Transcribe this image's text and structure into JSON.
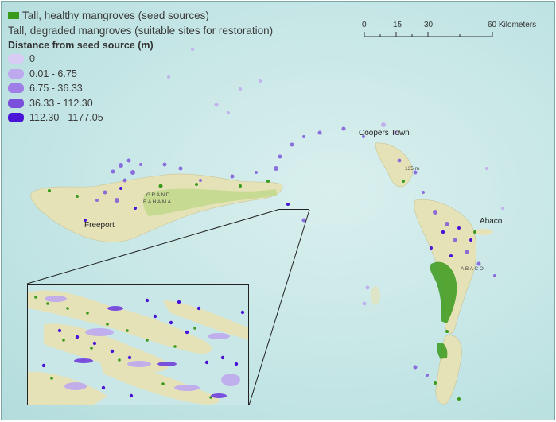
{
  "legend": {
    "healthy_label": "Tall, healthy mangroves (seed sources)",
    "healthy_color": "#3a9a1c",
    "degraded_label": "Tall, degraded mangroves (suitable sites for restoration)",
    "distance_title": "Distance from seed source (m)",
    "classes": [
      {
        "label": "0",
        "color": "#d8ccf4"
      },
      {
        "label": "0.01 - 6.75",
        "color": "#bfa9ee"
      },
      {
        "label": "6.75 - 36.33",
        "color": "#a07ee8"
      },
      {
        "label": "36.33 - 112.30",
        "color": "#7a4fdc"
      },
      {
        "label": "112.30 - 1177.05",
        "color": "#4a14d6"
      }
    ]
  },
  "scale_bar": {
    "ticks": [
      "0",
      "15",
      "30",
      "60 Kilometers"
    ]
  },
  "places": {
    "freeport": "Freeport",
    "grand_bahama_1": "GRAND",
    "grand_bahama_2": "BAHAMA",
    "coopers_town": "Coopers Town",
    "elevation": "135 m",
    "abaco_town": "Abaco",
    "abaco_island": "ABACO"
  },
  "colors": {
    "water": "#c6e6e6",
    "land": "#e6e2b8",
    "mangrove_green": "#3a9a1c"
  }
}
